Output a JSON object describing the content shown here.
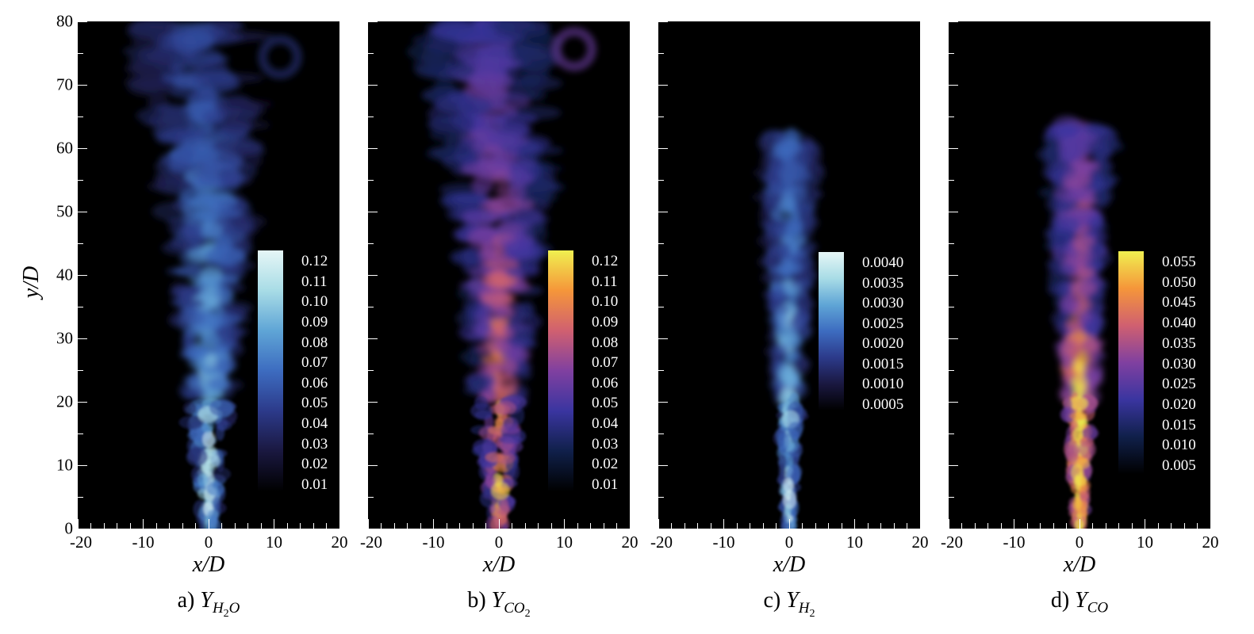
{
  "chart_data": [
    {
      "type": "heatmap",
      "panel": "a",
      "caption_prefix": "a)",
      "variable": "Y",
      "subscript": "H",
      "sub_num": "2",
      "sub_tail": "O",
      "xlabel": "x/D",
      "ylabel": "y/D",
      "xlim": [
        -20,
        20
      ],
      "ylim": [
        0,
        80
      ],
      "xticks": [
        "-20",
        "-10",
        "0",
        "10",
        "20"
      ],
      "yticks": [
        "0",
        "10",
        "20",
        "30",
        "40",
        "50",
        "60",
        "70",
        "80"
      ],
      "colorbar": {
        "labels": [
          "0.12",
          "0.11",
          "0.10",
          "0.09",
          "0.08",
          "0.07",
          "0.06",
          "0.05",
          "0.04",
          "0.03",
          "0.02",
          "0.01"
        ],
        "range": [
          0.005,
          0.125
        ],
        "colors": [
          "#000000",
          "#1a1840",
          "#2c3a8a",
          "#3d6cc0",
          "#5fa5d6",
          "#a8dce6",
          "#e6f6f6"
        ]
      }
    },
    {
      "type": "heatmap",
      "panel": "b",
      "caption_prefix": "b)",
      "variable": "Y",
      "subscript": "CO",
      "sub_num": "2",
      "sub_tail": "",
      "xlabel": "x/D",
      "ylabel": "y/D",
      "xlim": [
        -20,
        20
      ],
      "ylim": [
        0,
        80
      ],
      "xticks": [
        "-20",
        "-10",
        "0",
        "10",
        "20"
      ],
      "colorbar": {
        "labels": [
          "0.12",
          "0.11",
          "0.10",
          "0.09",
          "0.08",
          "0.07",
          "0.06",
          "0.05",
          "0.04",
          "0.03",
          "0.02",
          "0.01"
        ],
        "range": [
          0.005,
          0.125
        ],
        "colors": [
          "#000000",
          "#10204a",
          "#3a35a0",
          "#8040a0",
          "#d06070",
          "#f5963a",
          "#f0f050"
        ]
      }
    },
    {
      "type": "heatmap",
      "panel": "c",
      "caption_prefix": "c)",
      "variable": "Y",
      "subscript": "H",
      "sub_num": "2",
      "sub_tail": "",
      "xlabel": "x/D",
      "ylabel": "y/D",
      "xlim": [
        -20,
        20
      ],
      "ylim": [
        0,
        80
      ],
      "xticks": [
        "-20",
        "-10",
        "0",
        "10",
        "20"
      ],
      "colorbar": {
        "labels": [
          "0.0040",
          "0.0035",
          "0.0030",
          "0.0025",
          "0.0020",
          "0.0015",
          "0.0010",
          "0.0005"
        ],
        "range": [
          0.0003,
          0.0042
        ],
        "colors": [
          "#000000",
          "#1a1840",
          "#2c3a8a",
          "#3d6cc0",
          "#5fa5d6",
          "#a8dce6",
          "#e6f6f6"
        ]
      }
    },
    {
      "type": "heatmap",
      "panel": "d",
      "caption_prefix": "d)",
      "variable": "Y",
      "subscript": "CO",
      "sub_num": "",
      "sub_tail": "",
      "xlabel": "x/D",
      "ylabel": "y/D",
      "xlim": [
        -20,
        20
      ],
      "ylim": [
        0,
        80
      ],
      "xticks": [
        "-20",
        "-10",
        "0",
        "10",
        "20"
      ],
      "colorbar": {
        "labels": [
          "0.055",
          "0.050",
          "0.045",
          "0.040",
          "0.035",
          "0.030",
          "0.025",
          "0.020",
          "0.015",
          "0.010",
          "0.005"
        ],
        "range": [
          0.002,
          0.057
        ],
        "colors": [
          "#000000",
          "#10204a",
          "#3a35a0",
          "#8040a0",
          "#d06070",
          "#f5963a",
          "#f0f050"
        ]
      }
    }
  ]
}
